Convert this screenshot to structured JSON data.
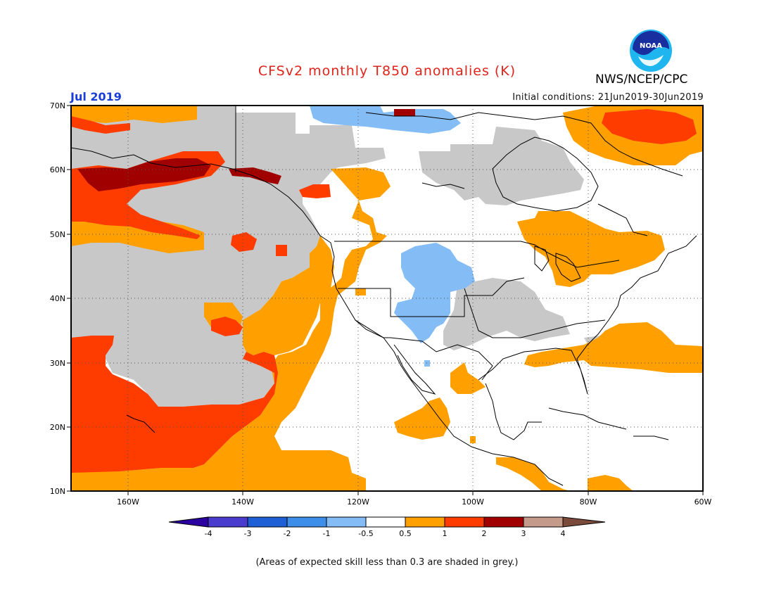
{
  "header": {
    "title": "CFSv2 monthly T850 anomalies (K)",
    "valid_month": "Jul 2019",
    "agency": "NWS/NCEP/CPC",
    "initial_conditions": "Initial conditions: 21Jun2019-30Jun2019",
    "logo_text": "NOAA"
  },
  "map": {
    "lon_range": [
      -170,
      -60
    ],
    "lat_range": [
      10,
      70
    ],
    "lat_ticks": [
      "70N",
      "60N",
      "50N",
      "40N",
      "30N",
      "20N",
      "10N"
    ],
    "lon_ticks": [
      "160W",
      "140W",
      "120W",
      "100W",
      "80W",
      "60W"
    ],
    "grid": "dotted"
  },
  "legend": {
    "labels": [
      "-4",
      "-3",
      "-2",
      "-1",
      "-0.5",
      "0.5",
      "1",
      "2",
      "3",
      "4"
    ],
    "colors": {
      "lt_-4": "#2a00a0",
      "-4_-3": "#4a3ccc",
      "-3_-2": "#1f5fd6",
      "-2_-1": "#3d8ee8",
      "-1_-0.5": "#84bdf5",
      "-0.5_0.5": "#ffffff",
      "0.5_1": "#ffa000",
      "1_2": "#ff3c00",
      "2_3": "#a00000",
      "3_4": "#c49a8a",
      "gt_4": "#7a4a3a"
    },
    "low_skill_color": "#c8c8c8"
  },
  "footnote": "(Areas of expected skill less than 0.3 are shaded in grey.)"
}
